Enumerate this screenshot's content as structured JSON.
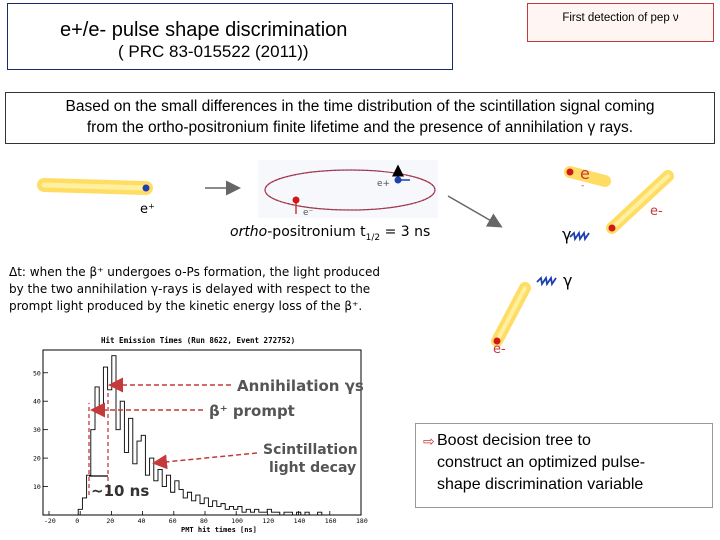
{
  "title": {
    "line1": "e+/e- pulse shape discrimination",
    "line2": "( PRC 83-015522 (2011))"
  },
  "badge": {
    "text": "First detection of pep ν"
  },
  "description": {
    "line1": "Based on the small differences in the time distribution of the scintillation signal coming",
    "line2": "from the ortho-positronium finite lifetime and the presence of annihilation γ rays."
  },
  "diagram": {
    "positron_label": "e⁺",
    "orbit_positron_label": "e+",
    "orbit_electron_label": "e⁻",
    "caption_italic": "ortho",
    "caption_rest": "-positronium t",
    "caption_sub": "1/2",
    "caption_tail": " = 3 ns",
    "electron_top_label": "e",
    "electron_top_minus": "-",
    "electron_right_label": "e-",
    "gamma1_label": "γ",
    "gamma2_label": "γ",
    "electron_bottom_label": "e-"
  },
  "delta_text": {
    "line1": "Δt: when the β⁺ undergoes o-Ps formation, the light produced",
    "line2": "by the two annihilation  γ-rays is delayed with respect to the",
    "line3": "prompt light produced by the kinetic energy loss of the β⁺."
  },
  "plot": {
    "title": "Hit Emission Times (Run 8622, Event 272752)",
    "xlabel": "PMT hit times [ns]",
    "y_ticks": [
      "50",
      "40",
      "30",
      "20",
      "10"
    ],
    "x_ticks": [
      "-20",
      "0",
      "20",
      "40",
      "60",
      "80",
      "100",
      "120",
      "140",
      "160",
      "180"
    ],
    "annotation_gamma": "Annihilation γs",
    "annotation_beta": "β⁺ prompt",
    "annotation_scint1": "Scintillation",
    "annotation_scint2": "light decay",
    "annotation_delay": "~10 ns"
  },
  "bullet": {
    "line1": "Boost decision tree to",
    "line2": "construct an optimized pulse-",
    "line3": "shape discrimination variable"
  },
  "colors": {
    "title_border": "#1b2a6b",
    "badge_border": "#c43a3a",
    "arrow_red": "#c43a3a",
    "track_yellow": "#ffd84a",
    "particle_blue": "#1d3fb0",
    "particle_red": "#d01818"
  }
}
